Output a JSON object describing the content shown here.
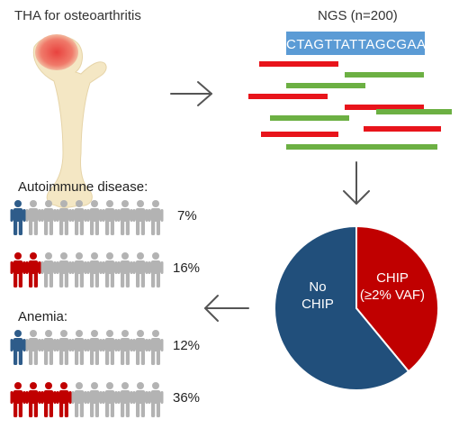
{
  "left_title": "THA for osteoarthritis",
  "right_title": "NGS (n=200)",
  "sequence": "CTAGTTATTAGCGAA",
  "autoimmune_label": "Autoimmune disease:",
  "anemia_label": "Anemia:",
  "pictograph_rows": [
    {
      "highlighted": 1,
      "total": 10,
      "color": "#2e5c8a",
      "percent": "7%"
    },
    {
      "highlighted": 2,
      "total": 10,
      "color": "#c00000",
      "percent": "16%"
    },
    {
      "highlighted": 1,
      "total": 10,
      "color": "#2e5c8a",
      "percent": "12%"
    },
    {
      "highlighted": 4,
      "total": 10,
      "color": "#c00000",
      "percent": "36%"
    }
  ],
  "chart_data": {
    "type": "pie",
    "slices": [
      {
        "label": "No CHIP",
        "fraction": 0.61,
        "color": "#214f7b"
      },
      {
        "label": "CHIP (≥2% VAF)",
        "fraction": 0.39,
        "color": "#c00000"
      }
    ]
  },
  "pie_labels": {
    "no_chip_1": "No",
    "no_chip_2": "CHIP",
    "chip_1": "CHIP",
    "chip_2": "(≥2% VAF)"
  },
  "read_colors": {
    "red": "#e8141b",
    "green": "#6cb043"
  },
  "bone_color": "#f4e7c4",
  "bone_head_color": "#ee5a4f",
  "sequence_bg": "#5b9bd5",
  "arrow_color": "#555555",
  "gray_figure": "#b3b3b3"
}
